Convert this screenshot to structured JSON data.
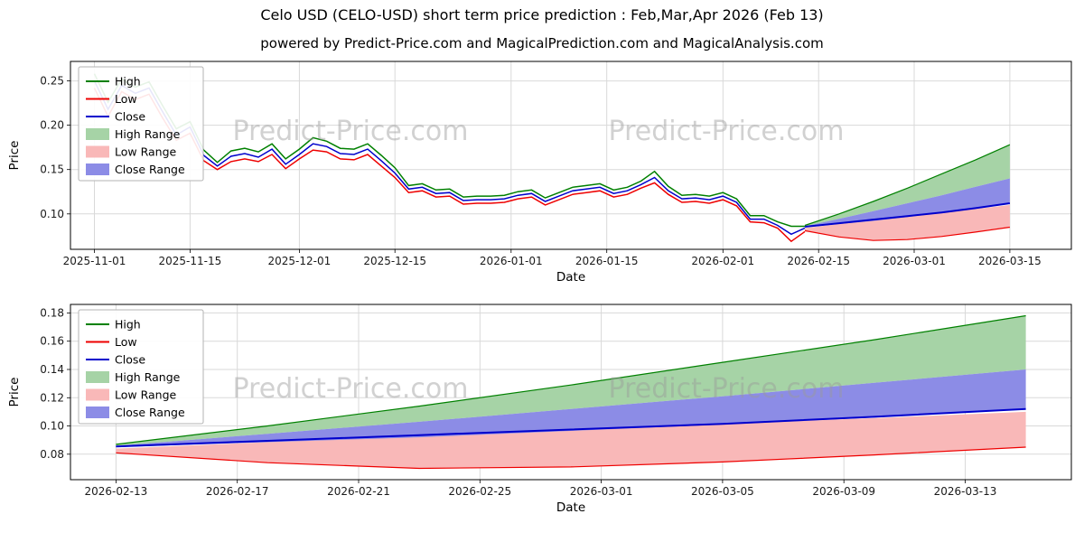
{
  "figure": {
    "title": "Celo USD (CELO-USD) short term price prediction : Feb,Mar,Apr 2026 (Feb 13)",
    "subtitle": "powered by Predict-Price.com and MagicalPrediction.com and MagicalAnalysis.com",
    "watermark_text": "Predict-Price.com"
  },
  "colors": {
    "high_line": "#008000",
    "low_line": "#ee0000",
    "close_line": "#0000cc",
    "high_range_fill": "#a6d3a6",
    "low_range_fill": "#f9b8b8",
    "close_range_fill": "#8c8ce6",
    "grid": "#d9d9d9",
    "axis": "#000000",
    "tick_text": "#1a1a1a",
    "watermark": "#9a9a9a",
    "legend_border": "#b3b3b3"
  },
  "legend_labels": [
    "High",
    "Low",
    "Close",
    "High Range",
    "Low Range",
    "Close Range"
  ],
  "chart_data": [
    {
      "name": "history-and-forecast",
      "type": "line",
      "xlabel": "Date",
      "ylabel": "Price",
      "ylim": [
        0.06,
        0.272
      ],
      "yticks": [
        {
          "v": 0.1,
          "label": "0.10"
        },
        {
          "v": 0.15,
          "label": "0.15"
        },
        {
          "v": 0.2,
          "label": "0.20"
        },
        {
          "v": 0.25,
          "label": "0.25"
        }
      ],
      "xlim": [
        -3.5,
        143
      ],
      "xticks": [
        {
          "v": 0,
          "label": "2025-11-01"
        },
        {
          "v": 14,
          "label": "2025-11-15"
        },
        {
          "v": 30,
          "label": "2025-12-01"
        },
        {
          "v": 44,
          "label": "2025-12-15"
        },
        {
          "v": 61,
          "label": "2026-01-01"
        },
        {
          "v": 75,
          "label": "2026-01-15"
        },
        {
          "v": 92,
          "label": "2026-02-01"
        },
        {
          "v": 106,
          "label": "2026-02-15"
        },
        {
          "v": 120,
          "label": "2026-03-01"
        },
        {
          "v": 134,
          "label": "2026-03-15"
        }
      ],
      "history": {
        "x": [
          0,
          2,
          4,
          6,
          8,
          10,
          12,
          14,
          16,
          18,
          20,
          22,
          24,
          26,
          28,
          30,
          32,
          34,
          36,
          38,
          40,
          42,
          44,
          46,
          48,
          50,
          52,
          54,
          56,
          58,
          60,
          62,
          64,
          66,
          68,
          70,
          72,
          74,
          76,
          78,
          80,
          82,
          84,
          86,
          88,
          90,
          92,
          94,
          96,
          98,
          100,
          102,
          104
        ],
        "high": [
          0.258,
          0.226,
          0.252,
          0.243,
          0.249,
          0.222,
          0.196,
          0.204,
          0.172,
          0.158,
          0.171,
          0.174,
          0.17,
          0.179,
          0.162,
          0.173,
          0.186,
          0.182,
          0.174,
          0.173,
          0.179,
          0.166,
          0.152,
          0.132,
          0.134,
          0.127,
          0.128,
          0.119,
          0.12,
          0.12,
          0.121,
          0.125,
          0.127,
          0.118,
          0.124,
          0.13,
          0.132,
          0.134,
          0.127,
          0.13,
          0.137,
          0.148,
          0.131,
          0.121,
          0.122,
          0.12,
          0.124,
          0.117,
          0.098,
          0.098,
          0.091,
          0.086,
          0.086
        ],
        "low": [
          0.242,
          0.21,
          0.238,
          0.229,
          0.235,
          0.208,
          0.183,
          0.191,
          0.16,
          0.15,
          0.159,
          0.162,
          0.159,
          0.167,
          0.151,
          0.162,
          0.172,
          0.17,
          0.162,
          0.161,
          0.167,
          0.154,
          0.141,
          0.124,
          0.126,
          0.119,
          0.12,
          0.111,
          0.112,
          0.112,
          0.113,
          0.117,
          0.119,
          0.11,
          0.116,
          0.122,
          0.124,
          0.126,
          0.119,
          0.122,
          0.129,
          0.135,
          0.122,
          0.113,
          0.114,
          0.112,
          0.116,
          0.109,
          0.091,
          0.09,
          0.084,
          0.069,
          0.08
        ],
        "close": [
          0.25,
          0.218,
          0.245,
          0.236,
          0.242,
          0.215,
          0.189,
          0.198,
          0.166,
          0.154,
          0.165,
          0.168,
          0.164,
          0.173,
          0.156,
          0.167,
          0.179,
          0.176,
          0.168,
          0.167,
          0.173,
          0.16,
          0.146,
          0.128,
          0.13,
          0.123,
          0.124,
          0.115,
          0.116,
          0.116,
          0.117,
          0.121,
          0.123,
          0.114,
          0.12,
          0.126,
          0.128,
          0.13,
          0.123,
          0.126,
          0.133,
          0.141,
          0.126,
          0.117,
          0.118,
          0.116,
          0.12,
          0.113,
          0.094,
          0.094,
          0.087,
          0.077,
          0.084
        ]
      },
      "forecast": {
        "x": [
          104,
          109,
          114,
          119,
          124,
          129,
          134
        ],
        "close": [
          0.0855,
          0.0895,
          0.0935,
          0.0975,
          0.1015,
          0.1065,
          0.112
        ],
        "high_upper": [
          0.087,
          0.1,
          0.114,
          0.129,
          0.145,
          0.161,
          0.178
        ],
        "high_lower": [
          0.086,
          0.0945,
          0.103,
          0.112,
          0.121,
          0.1305,
          0.14
        ],
        "close_upper": [
          0.086,
          0.0945,
          0.103,
          0.112,
          0.121,
          0.1305,
          0.14
        ],
        "close_lower": [
          0.085,
          0.0885,
          0.092,
          0.0965,
          0.101,
          0.106,
          0.1125
        ],
        "low_upper": [
          0.084,
          0.0885,
          0.093,
          0.0975,
          0.1015,
          0.1055,
          0.11
        ],
        "low_lower": [
          0.081,
          0.074,
          0.07,
          0.071,
          0.0745,
          0.0795,
          0.085
        ]
      }
    },
    {
      "name": "forecast-detail",
      "type": "line",
      "xlabel": "Date",
      "ylabel": "Price",
      "ylim": [
        0.062,
        0.186
      ],
      "yticks": [
        {
          "v": 0.08,
          "label": "0.08"
        },
        {
          "v": 0.1,
          "label": "0.10"
        },
        {
          "v": 0.12,
          "label": "0.12"
        },
        {
          "v": 0.14,
          "label": "0.14"
        },
        {
          "v": 0.16,
          "label": "0.16"
        },
        {
          "v": 0.18,
          "label": "0.18"
        }
      ],
      "xlim": [
        -1.5,
        31.5
      ],
      "xticks": [
        {
          "v": 0,
          "label": "2026-02-13"
        },
        {
          "v": 4,
          "label": "2026-02-17"
        },
        {
          "v": 8,
          "label": "2026-02-21"
        },
        {
          "v": 12,
          "label": "2026-02-25"
        },
        {
          "v": 16,
          "label": "2026-03-01"
        },
        {
          "v": 20,
          "label": "2026-03-05"
        },
        {
          "v": 24,
          "label": "2026-03-09"
        },
        {
          "v": 28,
          "label": "2026-03-13"
        }
      ],
      "forecast": {
        "x": [
          0,
          5,
          10,
          15,
          20,
          25,
          30
        ],
        "close": [
          0.0855,
          0.0895,
          0.0935,
          0.0975,
          0.1015,
          0.1065,
          0.112
        ],
        "high_upper": [
          0.087,
          0.1,
          0.114,
          0.129,
          0.145,
          0.161,
          0.178
        ],
        "high_lower": [
          0.086,
          0.0945,
          0.103,
          0.112,
          0.121,
          0.1305,
          0.14
        ],
        "close_upper": [
          0.086,
          0.0945,
          0.103,
          0.112,
          0.121,
          0.1305,
          0.14
        ],
        "close_lower": [
          0.085,
          0.0885,
          0.092,
          0.0965,
          0.101,
          0.106,
          0.1125
        ],
        "low_upper": [
          0.084,
          0.0885,
          0.093,
          0.0975,
          0.1015,
          0.1055,
          0.11
        ],
        "low_lower": [
          0.081,
          0.074,
          0.07,
          0.071,
          0.0745,
          0.0795,
          0.085
        ]
      }
    }
  ]
}
